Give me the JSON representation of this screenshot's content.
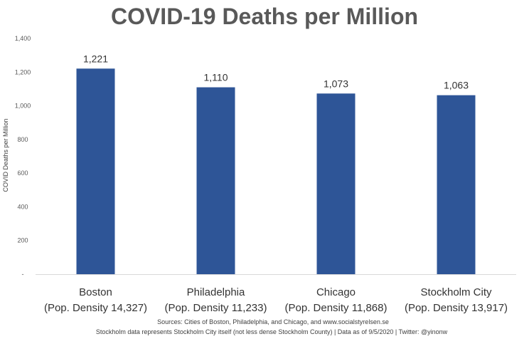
{
  "chart_data": {
    "type": "bar",
    "title": "COVID-19 Deaths per Million",
    "ylabel": "COVID Deaths per Million",
    "xlabel": "",
    "ylim": [
      0,
      1400
    ],
    "yticks": [
      {
        "value": 1400,
        "label": "1,400"
      },
      {
        "value": 1200,
        "label": "1,200"
      },
      {
        "value": 1000,
        "label": "1,000"
      },
      {
        "value": 800,
        "label": "800"
      },
      {
        "value": 600,
        "label": "600"
      },
      {
        "value": 400,
        "label": "400"
      },
      {
        "value": 200,
        "label": "200"
      },
      {
        "value": 0,
        "label": "-"
      }
    ],
    "categories": [
      {
        "name": "Boston",
        "sub": "(Pop. Density 14,327)"
      },
      {
        "name": "Philadelphia",
        "sub": "(Pop. Density 11,233)"
      },
      {
        "name": "Chicago",
        "sub": "(Pop. Density 11,868)"
      },
      {
        "name": "Stockholm City",
        "sub": "(Pop. Density 13,917)"
      }
    ],
    "values": [
      1221,
      1110,
      1073,
      1063
    ],
    "value_labels": [
      "1,221",
      "1,110",
      "1,073",
      "1,063"
    ],
    "bar_color": "#2e5597",
    "grid": false
  },
  "notes": {
    "sources": "Sources: Cities of Boston, Philadelphia, and Chicago, and www.socialstyrelsen.se",
    "footer": "Stockholm data represents Stockholm City itself (not less dense Stockholm County) | Data as of 9/5/2020 | Twitter: @yinonw"
  }
}
